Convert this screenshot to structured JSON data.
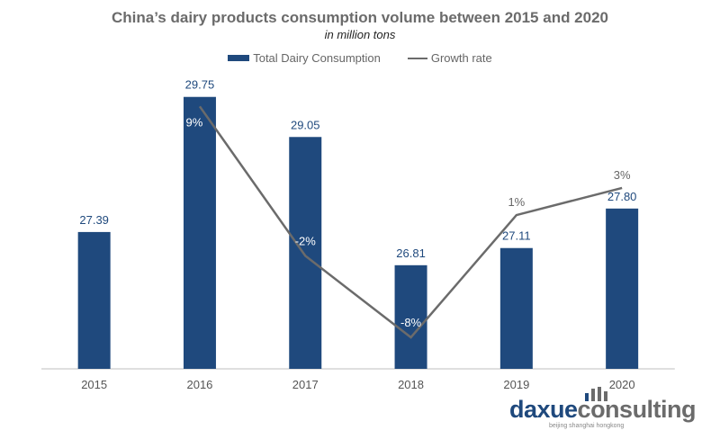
{
  "chart_data": {
    "type": "bar",
    "title": "China’s dairy products consumption volume between 2015 and 2020",
    "subtitle": "in million tons",
    "categories": [
      "2015",
      "2016",
      "2017",
      "2018",
      "2019",
      "2020"
    ],
    "series": [
      {
        "name": "Total Dairy Consumption",
        "type": "bar",
        "color": "#1f497d",
        "values": [
          27.39,
          29.75,
          29.05,
          26.81,
          27.11,
          27.8
        ],
        "labels": [
          "27.39",
          "29.75",
          "29.05",
          "26.81",
          "27.11",
          "27.80"
        ]
      },
      {
        "name": "Growth rate",
        "type": "line",
        "color": "#6b6b6b",
        "values": [
          null,
          9,
          -2,
          -8,
          1,
          3
        ],
        "labels": [
          "",
          "9%",
          "-2%",
          "-8%",
          "1%",
          "3%"
        ]
      }
    ],
    "ylim": [
      25,
      30.5
    ],
    "y2lim": [
      -9,
      13
    ],
    "legend": "top",
    "grid": false
  },
  "logo": {
    "text_primary": "daxue",
    "text_secondary": "consulting",
    "tagline": "beijing shanghai hongkong"
  }
}
